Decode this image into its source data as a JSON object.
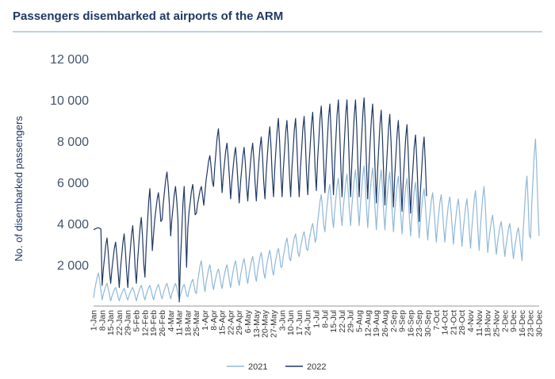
{
  "chart_data": {
    "type": "line",
    "title": "Passengers disembarked at airports of the ARM",
    "ylabel": "No. of disembarked passengers",
    "xlabel": "",
    "ylim": [
      0,
      12000
    ],
    "yticks": [
      2000,
      4000,
      6000,
      8000,
      10000,
      12000
    ],
    "ytick_labels": [
      "2 000",
      "4 000",
      "6 000",
      "8 000",
      "10 000",
      "12 000"
    ],
    "xticks": [
      "1-Jan",
      "8-Jan",
      "15-Jan",
      "22-Jan",
      "29-Jan",
      "5-Feb",
      "12-Feb",
      "19-Feb",
      "26-Feb",
      "4-Mar",
      "11-Mar",
      "18-Mar",
      "25-Mar",
      "1-Apr",
      "8-Apr",
      "15-Apr",
      "22-Apr",
      "29-Apr",
      "6-May",
      "13-May",
      "20-May",
      "27-May",
      "3-Jun",
      "10-Jun",
      "17-Jun",
      "24-Jun",
      "1-Jul",
      "8-Jul",
      "15-Jul",
      "22-Jul",
      "29-Jul",
      "5-Aug",
      "12-Aug",
      "19-Aug",
      "26-Aug",
      "2-Sep",
      "9-Sep",
      "16-Sep",
      "23-Sep",
      "30-Sep",
      "7-Oct",
      "14-Oct",
      "21-Oct",
      "28-Oct",
      "4-Nov",
      "11-Nov",
      "18-Nov",
      "25-Nov",
      "2-Dec",
      "9-Dec",
      "16-Dec",
      "23-Dec",
      "30-Dec"
    ],
    "x_unit": "day of year (1-Jan to 31-Dec)",
    "legend_position": "bottom-center",
    "grid": false,
    "series": [
      {
        "name": "2021",
        "color": "#8fb8d8",
        "weekly_min": [
          400,
          300,
          250,
          250,
          300,
          250,
          300,
          300,
          350,
          350,
          300,
          450,
          600,
          700,
          800,
          850,
          900,
          1000,
          1100,
          1200,
          1350,
          1500,
          1900,
          2200,
          2400,
          2700,
          3300,
          3600,
          3800,
          3900,
          3900,
          3900,
          3800,
          3700,
          3700,
          3600,
          3500,
          3400,
          3300,
          3200,
          3100,
          3100,
          3000,
          2900,
          2800,
          2700,
          2600,
          2500,
          2400,
          2300,
          2200,
          3300,
          3400
        ],
        "weekly_max": [
          1600,
          1100,
          900,
          850,
          900,
          1000,
          1000,
          1050,
          1100,
          1100,
          1050,
          1300,
          2200,
          2000,
          1800,
          2000,
          2200,
          2300,
          2400,
          2600,
          2700,
          2800,
          3300,
          3500,
          3600,
          4000,
          5400,
          5900,
          6200,
          6400,
          6600,
          6800,
          6700,
          6600,
          6500,
          6300,
          6200,
          6000,
          5700,
          5500,
          5400,
          5300,
          5200,
          5200,
          5600,
          5800,
          4400,
          4100,
          4000,
          3800,
          6300,
          8100,
          5500
        ]
      },
      {
        "name": "2022",
        "color": "#1f3864",
        "weekly_min": [
          3700,
          1000,
          1100,
          900,
          900,
          1100,
          1400,
          3500,
          4200,
          3400,
          200,
          3800,
          4500,
          5500,
          5800,
          5500,
          5200,
          5000,
          5100,
          5100,
          5200,
          5300,
          5300,
          5300,
          5300,
          5400,
          5600,
          5500,
          5400,
          5300,
          5300,
          5300,
          5200,
          5000,
          4900,
          4800,
          4600,
          4500,
          4100
        ],
        "weekly_max": [
          3800,
          3300,
          3100,
          3500,
          3900,
          4300,
          5700,
          5500,
          6500,
          5800,
          5800,
          5900,
          5800,
          7300,
          8600,
          7900,
          7700,
          7700,
          7900,
          8200,
          8700,
          9100,
          9000,
          9100,
          9200,
          9400,
          9700,
          9800,
          10000,
          10000,
          10000,
          10100,
          9800,
          9500,
          9300,
          9000,
          8800,
          8300,
          8200
        ]
      }
    ]
  }
}
